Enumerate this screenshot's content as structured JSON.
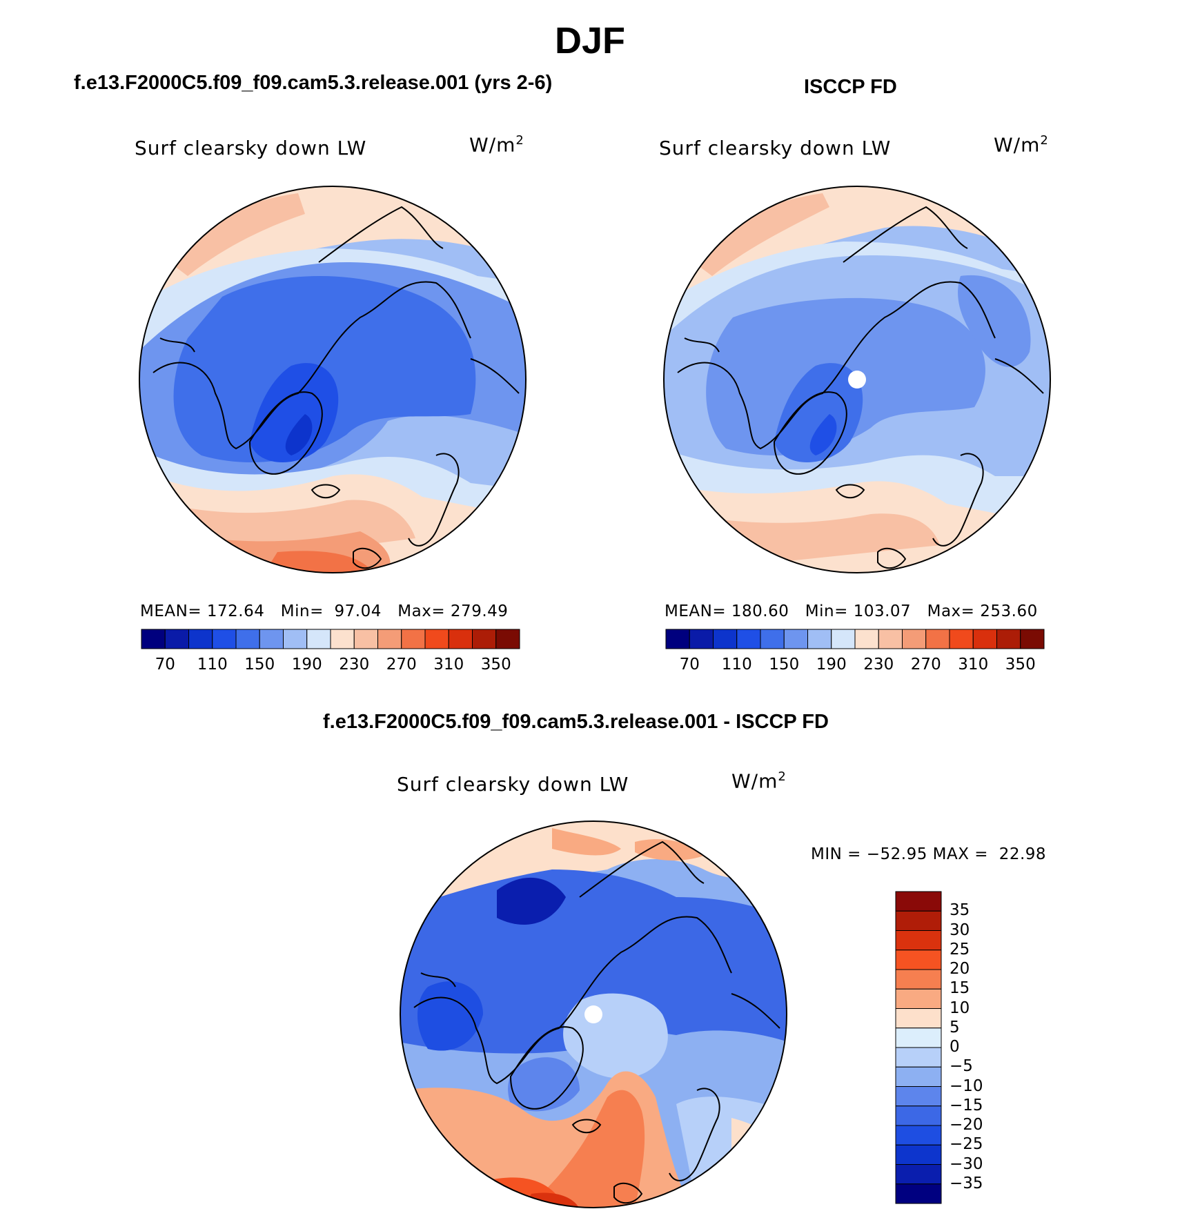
{
  "figure": {
    "title": "DJF",
    "panels": [
      {
        "id": "model",
        "subtitle": "f.e13.F2000C5.f09_f09.cam5.3.release.001 (yrs 2-6)",
        "variable": "Surf clearsky down LW",
        "unit_base": "W/m",
        "unit_exp": "2",
        "stats": "MEAN= 172.64   Min=  97.04   Max= 279.49"
      },
      {
        "id": "obs",
        "subtitle": "ISCCP FD",
        "variable": "Surf clearsky down LW",
        "unit_base": "W/m",
        "unit_exp": "2",
        "stats": "MEAN= 180.60   Min= 103.07   Max= 253.60"
      },
      {
        "id": "diff",
        "subtitle": "f.e13.F2000C5.f09_f09.cam5.3.release.001 - ISCCP FD",
        "variable": "Surf clearsky down LW",
        "unit_base": "W/m",
        "unit_exp": "2",
        "stats": "MIN = −52.95 MAX =  22.98"
      }
    ],
    "colorbar_abs": {
      "colors": [
        "#00007e",
        "#0a1ba8",
        "#0d34cc",
        "#1f4fe6",
        "#3f6fea",
        "#6e95ef",
        "#a0bef5",
        "#d5e6fa",
        "#fce1ce",
        "#f8c0a4",
        "#f49c77",
        "#f27246",
        "#f04a1c",
        "#d9300d",
        "#ac1d07",
        "#7a0b03"
      ],
      "tick_labels": [
        "70",
        "110",
        "150",
        "190",
        "230",
        "270",
        "310",
        "350"
      ]
    },
    "colorbar_diff": {
      "colors_top_to_bottom": [
        "#8a0a08",
        "#b01d08",
        "#da320e",
        "#f55322",
        "#f67f50",
        "#f9aa82",
        "#fde0cb",
        "#dceefc",
        "#b7d0f9",
        "#8db0f2",
        "#5d85ec",
        "#3c68e6",
        "#1e4ee2",
        "#0d35cd",
        "#0a1eae",
        "#000080"
      ],
      "tick_labels": [
        "35",
        "30",
        "25",
        "20",
        "15",
        "10",
        "5",
        "0",
        "−5",
        "−10",
        "−15",
        "−20",
        "−25",
        "−30",
        "−35"
      ]
    }
  }
}
